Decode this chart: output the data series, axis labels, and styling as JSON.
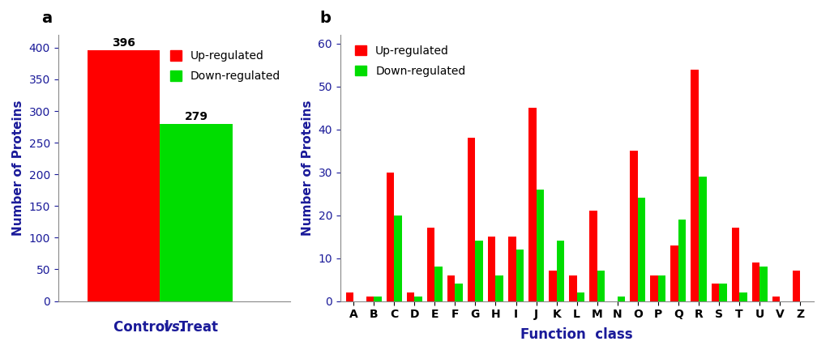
{
  "panel_a": {
    "values": [
      396,
      279
    ],
    "colors": [
      "#ff0000",
      "#00dd00"
    ],
    "ylabel": "Number of Proteins",
    "ylim": [
      0,
      420
    ],
    "yticks": [
      0,
      50,
      100,
      150,
      200,
      250,
      300,
      350,
      400
    ]
  },
  "panel_b": {
    "categories": [
      "A",
      "B",
      "C",
      "D",
      "E",
      "F",
      "G",
      "H",
      "I",
      "J",
      "K",
      "L",
      "M",
      "N",
      "O",
      "P",
      "Q",
      "R",
      "S",
      "T",
      "U",
      "V",
      "Z"
    ],
    "up_regulated": [
      2,
      1,
      30,
      2,
      17,
      6,
      38,
      15,
      15,
      45,
      7,
      6,
      21,
      0,
      35,
      6,
      13,
      54,
      4,
      17,
      9,
      1,
      7
    ],
    "down_regulated": [
      0,
      1,
      20,
      1,
      8,
      4,
      14,
      6,
      12,
      26,
      14,
      2,
      7,
      1,
      24,
      6,
      19,
      29,
      4,
      2,
      8,
      0,
      0
    ],
    "up_color": "#ff0000",
    "down_color": "#00dd00",
    "ylabel": "Number of Proteins",
    "ylim": [
      0,
      62
    ],
    "yticks": [
      0,
      10,
      20,
      30,
      40,
      50,
      60
    ]
  },
  "background_color": "#ffffff",
  "label_a": "a",
  "label_b": "b",
  "axis_color": "#1a1a99",
  "tick_label_color": "#1a1a99",
  "spine_color": "#888888"
}
